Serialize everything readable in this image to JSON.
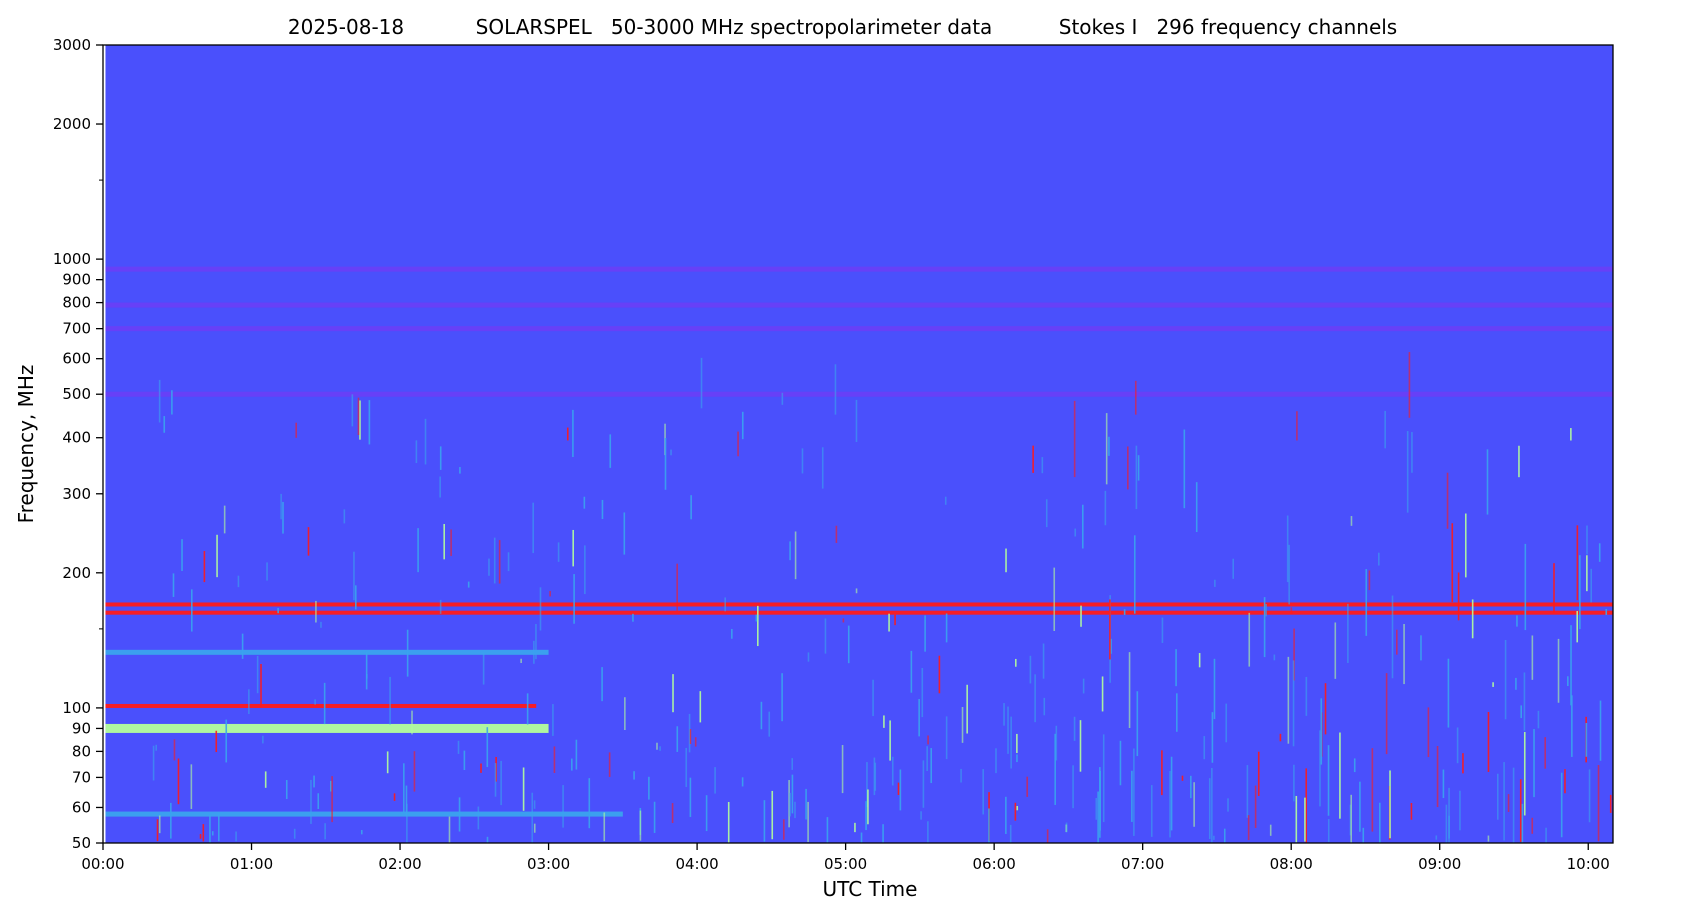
{
  "chart_data": {
    "type": "heatmap",
    "title_parts": [
      "2025-08-18",
      "SOLARSPEL   50-3000 MHz spectropolarimeter data",
      "Stokes I   296 frequency channels"
    ],
    "xlabel": "UTC Time",
    "ylabel": "Frequency, MHz",
    "x_scale": "time",
    "x_range": [
      "00:00",
      "10:10"
    ],
    "x_ticks": [
      "00:00",
      "01:00",
      "02:00",
      "03:00",
      "04:00",
      "05:00",
      "06:00",
      "07:00",
      "08:00",
      "09:00",
      "10:00"
    ],
    "y_scale": "log",
    "y_range": [
      50,
      3000
    ],
    "y_ticks": [
      {
        "value": 50,
        "label": "50"
      },
      {
        "value": 60,
        "label": "60"
      },
      {
        "value": 70,
        "label": "70"
      },
      {
        "value": 80,
        "label": "80"
      },
      {
        "value": 90,
        "label": "90"
      },
      {
        "value": 100,
        "label": "100"
      },
      {
        "value": 200,
        "label": "200"
      },
      {
        "value": 300,
        "label": "300"
      },
      {
        "value": 400,
        "label": "400"
      },
      {
        "value": 500,
        "label": "500"
      },
      {
        "value": 600,
        "label": "600"
      },
      {
        "value": 700,
        "label": "700"
      },
      {
        "value": 800,
        "label": "800"
      },
      {
        "value": 900,
        "label": "900"
      },
      {
        "value": 1000,
        "label": "1000"
      },
      {
        "value": 2000,
        "label": "2000"
      },
      {
        "value": 3000,
        "label": "3000"
      }
    ],
    "y_minor_ticks": [
      150,
      1500
    ],
    "data_start": "00:01",
    "colormap": "rainbow",
    "colors": {
      "background": "#4a50fc",
      "low": "#6a3ef6",
      "mid": "#3aa3ee",
      "high": "#b4ff9a",
      "max": "#ff1a1a"
    },
    "horizontal_bands": [
      {
        "freq": 950,
        "t_start": "00:01",
        "t_end": "10:10",
        "level": "low"
      },
      {
        "freq": 790,
        "t_start": "00:01",
        "t_end": "10:10",
        "level": "low"
      },
      {
        "freq": 700,
        "t_start": "00:01",
        "t_end": "10:10",
        "level": "low"
      },
      {
        "freq": 500,
        "t_start": "00:01",
        "t_end": "10:10",
        "level": "low"
      },
      {
        "freq": 170,
        "t_start": "00:01",
        "t_end": "10:10",
        "level": "max"
      },
      {
        "freq": 163,
        "t_start": "00:01",
        "t_end": "10:10",
        "level": "max"
      },
      {
        "freq": 133,
        "t_start": "00:01",
        "t_end": "03:00",
        "level": "mid"
      },
      {
        "freq": 101,
        "t_start": "00:01",
        "t_end": "02:55",
        "level": "max"
      },
      {
        "freq": 90,
        "t_start": "00:01",
        "t_end": "03:00",
        "level": "high"
      },
      {
        "freq": 58,
        "t_start": "00:01",
        "t_end": "03:30",
        "level": "mid"
      }
    ]
  }
}
